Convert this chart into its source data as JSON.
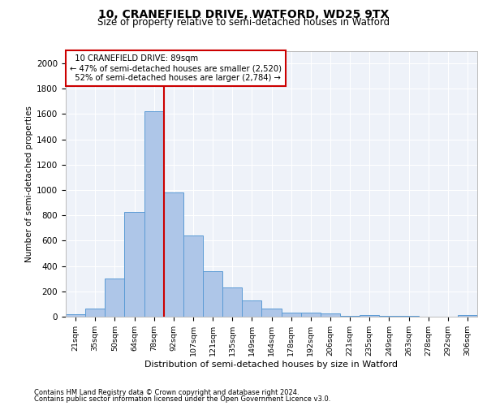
{
  "title1": "10, CRANEFIELD DRIVE, WATFORD, WD25 9TX",
  "title2": "Size of property relative to semi-detached houses in Watford",
  "xlabel": "Distribution of semi-detached houses by size in Watford",
  "ylabel": "Number of semi-detached properties",
  "categories": [
    "21sqm",
    "35sqm",
    "50sqm",
    "64sqm",
    "78sqm",
    "92sqm",
    "107sqm",
    "121sqm",
    "135sqm",
    "149sqm",
    "164sqm",
    "178sqm",
    "192sqm",
    "206sqm",
    "221sqm",
    "235sqm",
    "249sqm",
    "263sqm",
    "278sqm",
    "292sqm",
    "306sqm"
  ],
  "values": [
    20,
    65,
    300,
    830,
    1620,
    980,
    640,
    360,
    230,
    130,
    65,
    30,
    30,
    25,
    5,
    10,
    5,
    5,
    2,
    2,
    10
  ],
  "bar_color": "#aec6e8",
  "bar_edge_color": "#5b9bd5",
  "vline_color": "#cc0000",
  "vline_x": 4.5,
  "vline_label": "10 CRANEFIELD DRIVE: 89sqm",
  "smaller_pct": "47%",
  "smaller_n": "2,520",
  "larger_pct": "52%",
  "larger_n": "2,784",
  "ylim": [
    0,
    2100
  ],
  "yticks": [
    0,
    200,
    400,
    600,
    800,
    1000,
    1200,
    1400,
    1600,
    1800,
    2000
  ],
  "footnote1": "Contains HM Land Registry data © Crown copyright and database right 2024.",
  "footnote2": "Contains public sector information licensed under the Open Government Licence v3.0.",
  "bg_color": "#eef2f9",
  "fig_bg": "#ffffff"
}
